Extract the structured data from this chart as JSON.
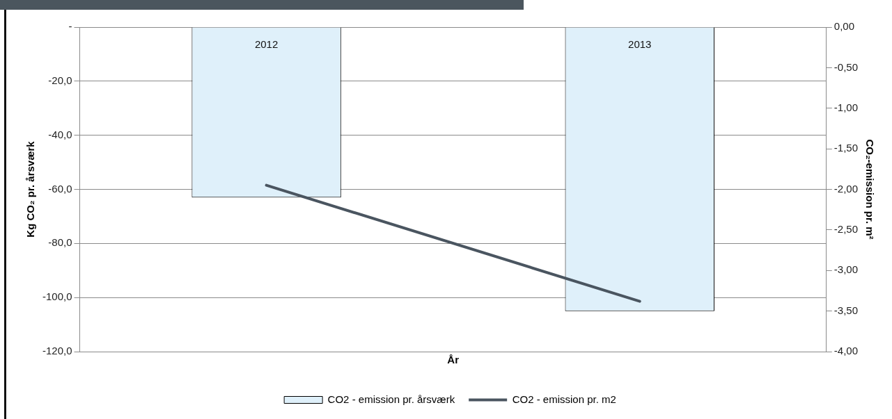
{
  "chart_data": {
    "type": "bar",
    "categories": [
      "2012",
      "2013"
    ],
    "series": [
      {
        "name": "CO2 - emission pr. årsværk",
        "color": "#dff0fa",
        "values": [
          -63,
          -105
        ]
      },
      {
        "name": "CO2 - emission pr. m2",
        "type": "line",
        "axis": "y2",
        "color": "#4a5560",
        "values": [
          -1.95,
          -3.38
        ]
      }
    ],
    "xlabel": "År",
    "ylabel": "Kg CO₂ pr. årsværk",
    "y2label": "CO₂-emission pr. m²",
    "ylim": [
      -120,
      0
    ],
    "yticks": [
      {
        "value": 0,
        "label": "-"
      },
      {
        "value": -20,
        "label": "-20,0"
      },
      {
        "value": -40,
        "label": "-40,0"
      },
      {
        "value": -60,
        "label": "-60,0"
      },
      {
        "value": -80,
        "label": "-80,0"
      },
      {
        "value": -100,
        "label": "-100,0"
      },
      {
        "value": -120,
        "label": "-120,0"
      }
    ],
    "y2lim": [
      -4,
      0
    ],
    "y2ticks": [
      {
        "value": 0,
        "label": "0,00"
      },
      {
        "value": -0.5,
        "label": "-0,50"
      },
      {
        "value": -1,
        "label": "-1,00"
      },
      {
        "value": -1.5,
        "label": "-1,50"
      },
      {
        "value": -2,
        "label": "-2,00"
      },
      {
        "value": -2.5,
        "label": "-2,50"
      },
      {
        "value": -3,
        "label": "-3,00"
      },
      {
        "value": -3.5,
        "label": "-3,50"
      },
      {
        "value": -4,
        "label": "-4,00"
      }
    ],
    "grid": "y",
    "legend": "bottom"
  }
}
